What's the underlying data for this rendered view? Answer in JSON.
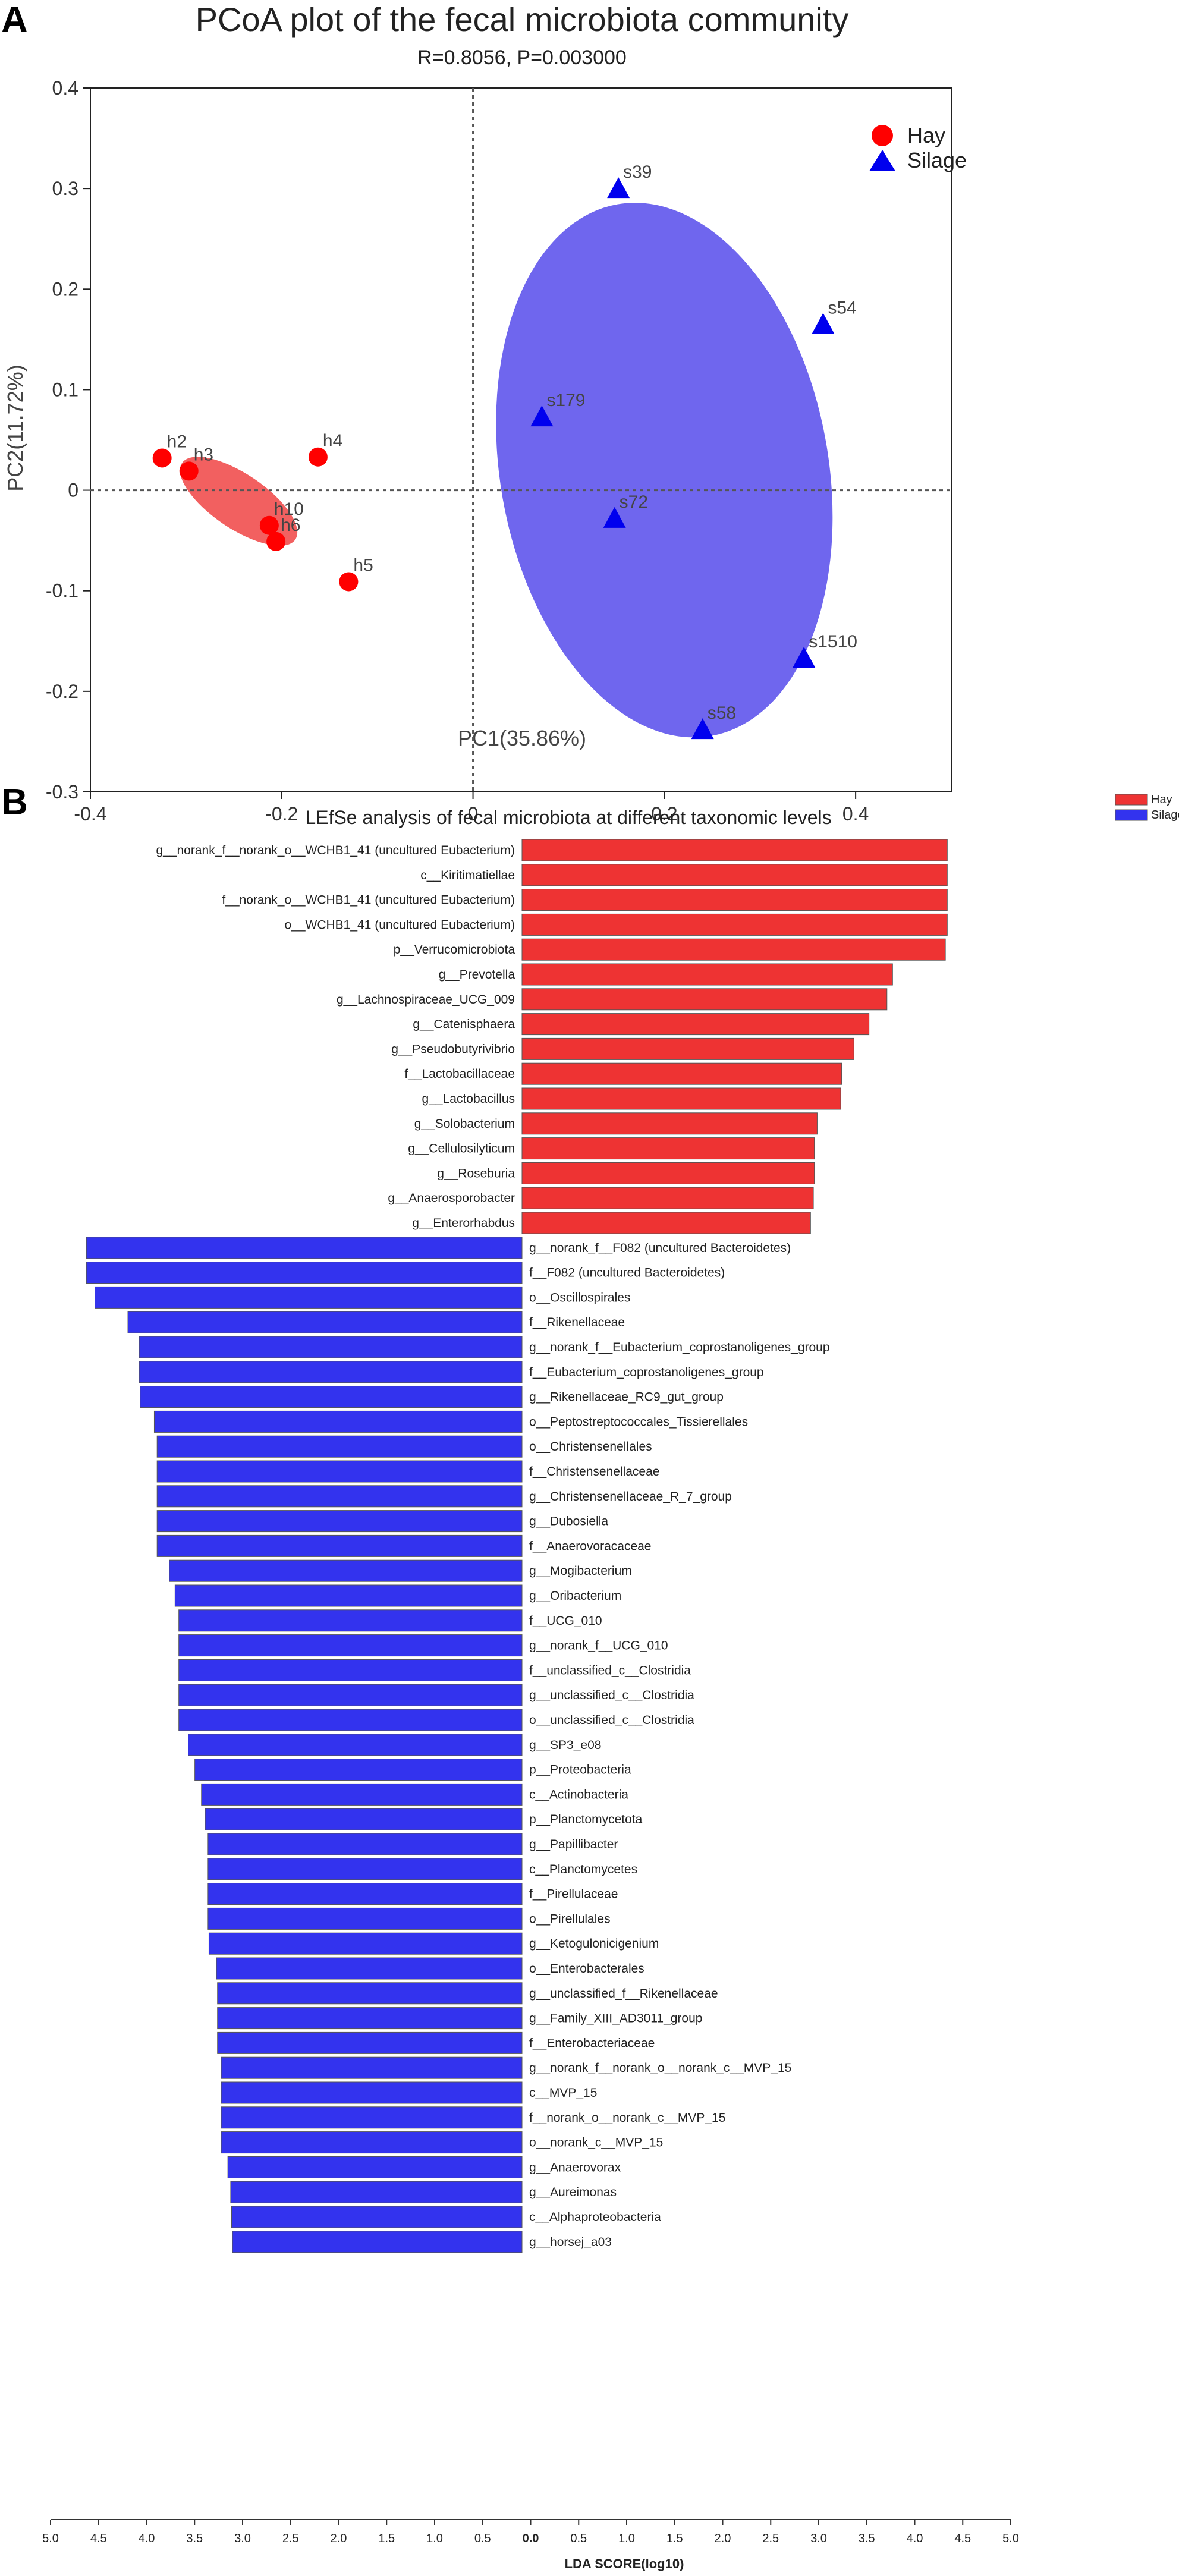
{
  "chart_data": [
    {
      "type": "scatter",
      "panel_label": "A",
      "title": "PCoA plot of the fecal microbiota community",
      "subtitle": "R=0.8056, P=0.003000",
      "xlabel": "PC1(35.86%)",
      "ylabel": "PC2(11.72%)",
      "xlim": [
        -0.4,
        0.5
      ],
      "ylim": [
        -0.3,
        0.4
      ],
      "xticks": [
        "-0.4",
        "-0.2",
        "0",
        "0.2",
        "0.4"
      ],
      "yticks": [
        "0.4",
        "0.3",
        "0.2",
        "0.1",
        "0",
        "-0.1",
        "-0.2",
        "-0.3"
      ],
      "legend": {
        "position": "top-right outside"
      },
      "series": [
        {
          "name": "Hay",
          "marker": "circle",
          "color": "#ff0000",
          "ellipse_color": "#f26060",
          "points": [
            {
              "label": "h2",
              "x": -0.325,
              "y": 0.032
            },
            {
              "label": "h3",
              "x": -0.297,
              "y": 0.019
            },
            {
              "label": "h4",
              "x": -0.162,
              "y": 0.033
            },
            {
              "label": "h10",
              "x": -0.213,
              "y": -0.035
            },
            {
              "label": "h6",
              "x": -0.206,
              "y": -0.051
            },
            {
              "label": "h5",
              "x": -0.13,
              "y": -0.091
            }
          ]
        },
        {
          "name": "Silage",
          "marker": "triangle",
          "color": "#0000ee",
          "ellipse_color": "#6f66ee",
          "points": [
            {
              "label": "s39",
              "x": 0.152,
              "y": 0.3
            },
            {
              "label": "s54",
              "x": 0.366,
              "y": 0.165
            },
            {
              "label": "s179",
              "x": 0.072,
              "y": 0.073
            },
            {
              "label": "s72",
              "x": 0.148,
              "y": -0.028
            },
            {
              "label": "s1510",
              "x": 0.346,
              "y": -0.167
            },
            {
              "label": "s58",
              "x": 0.24,
              "y": -0.238
            }
          ]
        }
      ]
    },
    {
      "type": "bar",
      "panel_label": "B",
      "orientation": "horizontal diverging",
      "title": "LEfSe analysis of fecal microbiota at different taxonomic levels",
      "xlabel": "LDA SCORE(log10)",
      "xlim": [
        -5.0,
        5.0
      ],
      "xticks": [
        "5.0",
        "4.5",
        "4.0",
        "3.5",
        "3.0",
        "2.5",
        "2.0",
        "1.5",
        "1.0",
        "0.5",
        "0.0",
        "0.5",
        "1.0",
        "1.5",
        "2.0",
        "2.5",
        "3.0",
        "3.5",
        "4.0",
        "4.5",
        "5.0"
      ],
      "legend": {
        "position": "top-right"
      },
      "series": [
        {
          "name": "Hay",
          "color": "#ee3333",
          "categories": [
            "g__norank_f__norank_o__WCHB1_41 (uncultured Eubacterium)",
            "c__Kiritimatiellae",
            "f__norank_o__WCHB1_41 (uncultured Eubacterium)",
            "o__WCHB1_41 (uncultured Eubacterium)",
            "p__Verrucomicrobiota",
            "g__Prevotella",
            "g__Lachnospiraceae_UCG_009",
            "g__Catenisphaera",
            "g__Pseudobutyrivibrio",
            "f__Lactobacillaceae",
            "g__Lactobacillus",
            "g__Solobacterium",
            "g__Cellulosilyticum",
            "g__Roseburia",
            "g__Anaerosporobacter",
            "g__Enterorhabdus"
          ],
          "values": [
            4.51,
            4.51,
            4.51,
            4.51,
            4.49,
            3.93,
            3.87,
            3.68,
            3.52,
            3.39,
            3.38,
            3.13,
            3.1,
            3.1,
            3.09,
            3.06
          ]
        },
        {
          "name": "Silage",
          "color": "#3333ee",
          "categories": [
            "g__norank_f__F082 (uncultured Bacteroidetes)",
            "f__F082 (uncultured Bacteroidetes)",
            "o__Oscillospirales",
            "f__Rikenellaceae",
            "g__norank_f__Eubacterium_coprostanoligenes_group",
            "f__Eubacterium_coprostanoligenes_group",
            "g__Rikenellaceae_RC9_gut_group",
            "o__Peptostreptococcales_Tissierellales",
            "o__Christensenellales",
            "f__Christensenellaceae",
            "g__Christensenellaceae_R_7_group",
            "g__Dubosiella",
            "f__Anaerovoracaceae",
            "g__Mogibacterium",
            "g__Oribacterium",
            "f__UCG_010",
            "g__norank_f__UCG_010",
            "f__unclassified_c__Clostridia",
            "g__unclassified_c__Clostridia",
            "o__unclassified_c__Clostridia",
            "g__SP3_e08",
            "p__Proteobacteria",
            "c__Actinobacteria",
            "p__Planctomycetota",
            "g__Papillibacter",
            "c__Planctomycetes",
            "f__Pirellulaceae",
            "o__Pirellulales",
            "g__Ketogulonicigenium",
            "o__Enterobacterales",
            "g__unclassified_f__Rikenellaceae",
            "g__Family_XIII_AD3011_group",
            "f__Enterobacteriaceae",
            "g__norank_f__norank_o__norank_c__MVP_15",
            "c__MVP_15",
            "f__norank_o__norank_c__MVP_15",
            "o__norank_c__MVP_15",
            "g__Anaerovorax",
            "g__Aureimonas",
            "c__Alphaproteobacteria",
            "g__horsej_a03"
          ],
          "values": [
            4.62,
            4.62,
            4.53,
            4.18,
            4.06,
            4.06,
            4.05,
            3.9,
            3.87,
            3.87,
            3.87,
            3.87,
            3.87,
            3.74,
            3.68,
            3.64,
            3.64,
            3.64,
            3.64,
            3.64,
            3.54,
            3.47,
            3.4,
            3.36,
            3.33,
            3.33,
            3.33,
            3.33,
            3.32,
            3.24,
            3.23,
            3.23,
            3.23,
            3.19,
            3.19,
            3.19,
            3.19,
            3.12,
            3.09,
            3.08,
            3.07
          ]
        }
      ]
    }
  ]
}
